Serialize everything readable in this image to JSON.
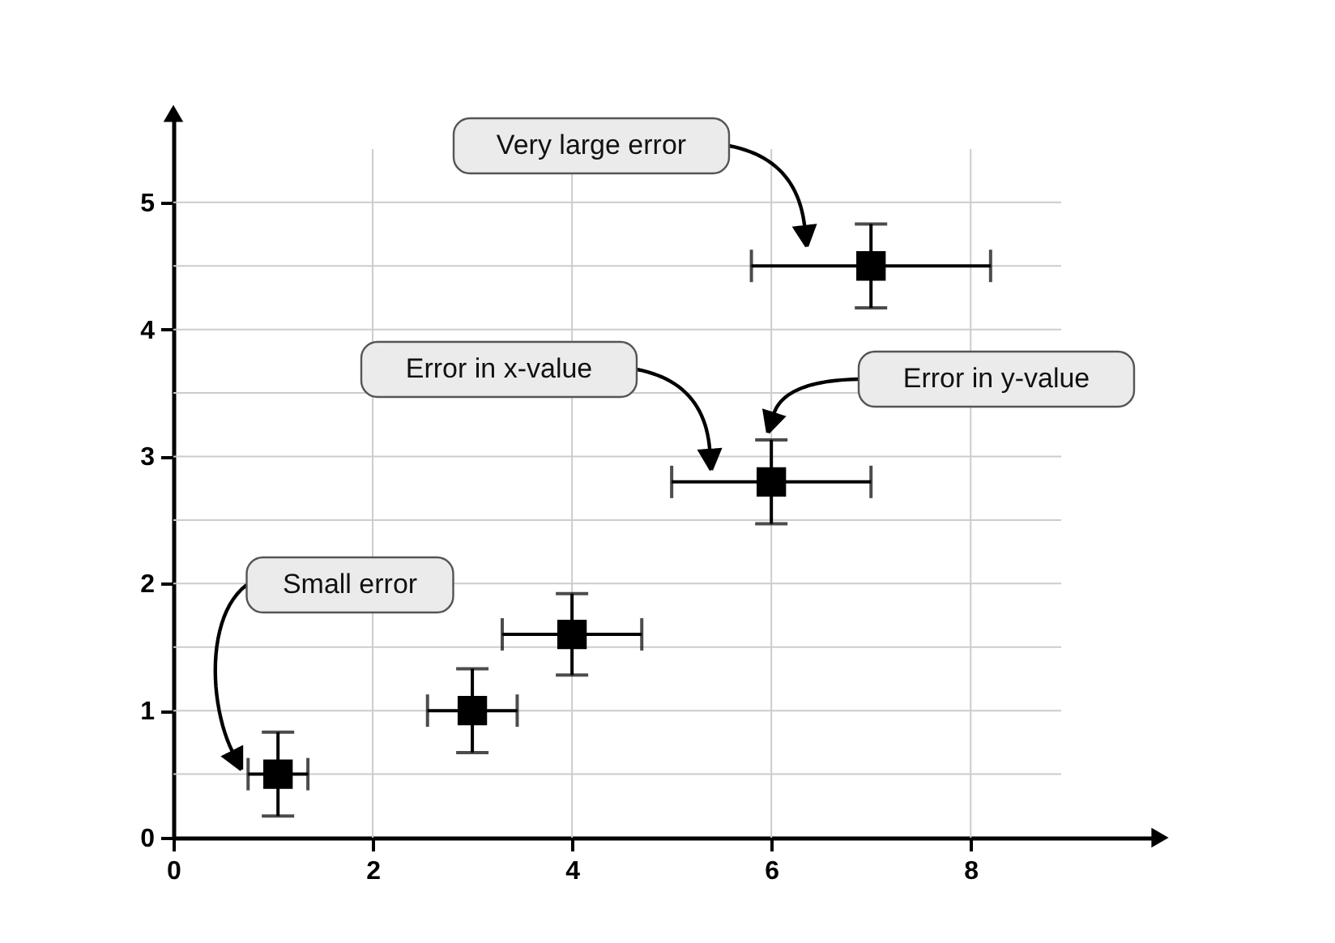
{
  "chart_data": {
    "type": "scatter",
    "x": [
      1.05,
      3,
      4,
      6,
      7
    ],
    "series": [
      {
        "color": "#000000",
        "values": [
          0.5,
          1,
          1.6,
          2.8,
          4.5
        ],
        "errors": [
          0.33,
          0.33,
          0.32,
          0.33,
          0.33
        ],
        "xerrors": [
          0.3,
          0.45,
          0.7,
          1,
          1.2
        ]
      }
    ],
    "marker": "square",
    "xlim": [
      0,
      9.9
    ],
    "ylim": [
      0,
      5.7
    ],
    "xticks": [
      0,
      2,
      4,
      6,
      8
    ],
    "yticks": [
      0,
      1,
      2,
      3,
      4,
      5
    ],
    "grid": true,
    "annotations": [
      "Very large error",
      "Error in x-value",
      "Error in y-value",
      "Small error"
    ]
  }
}
